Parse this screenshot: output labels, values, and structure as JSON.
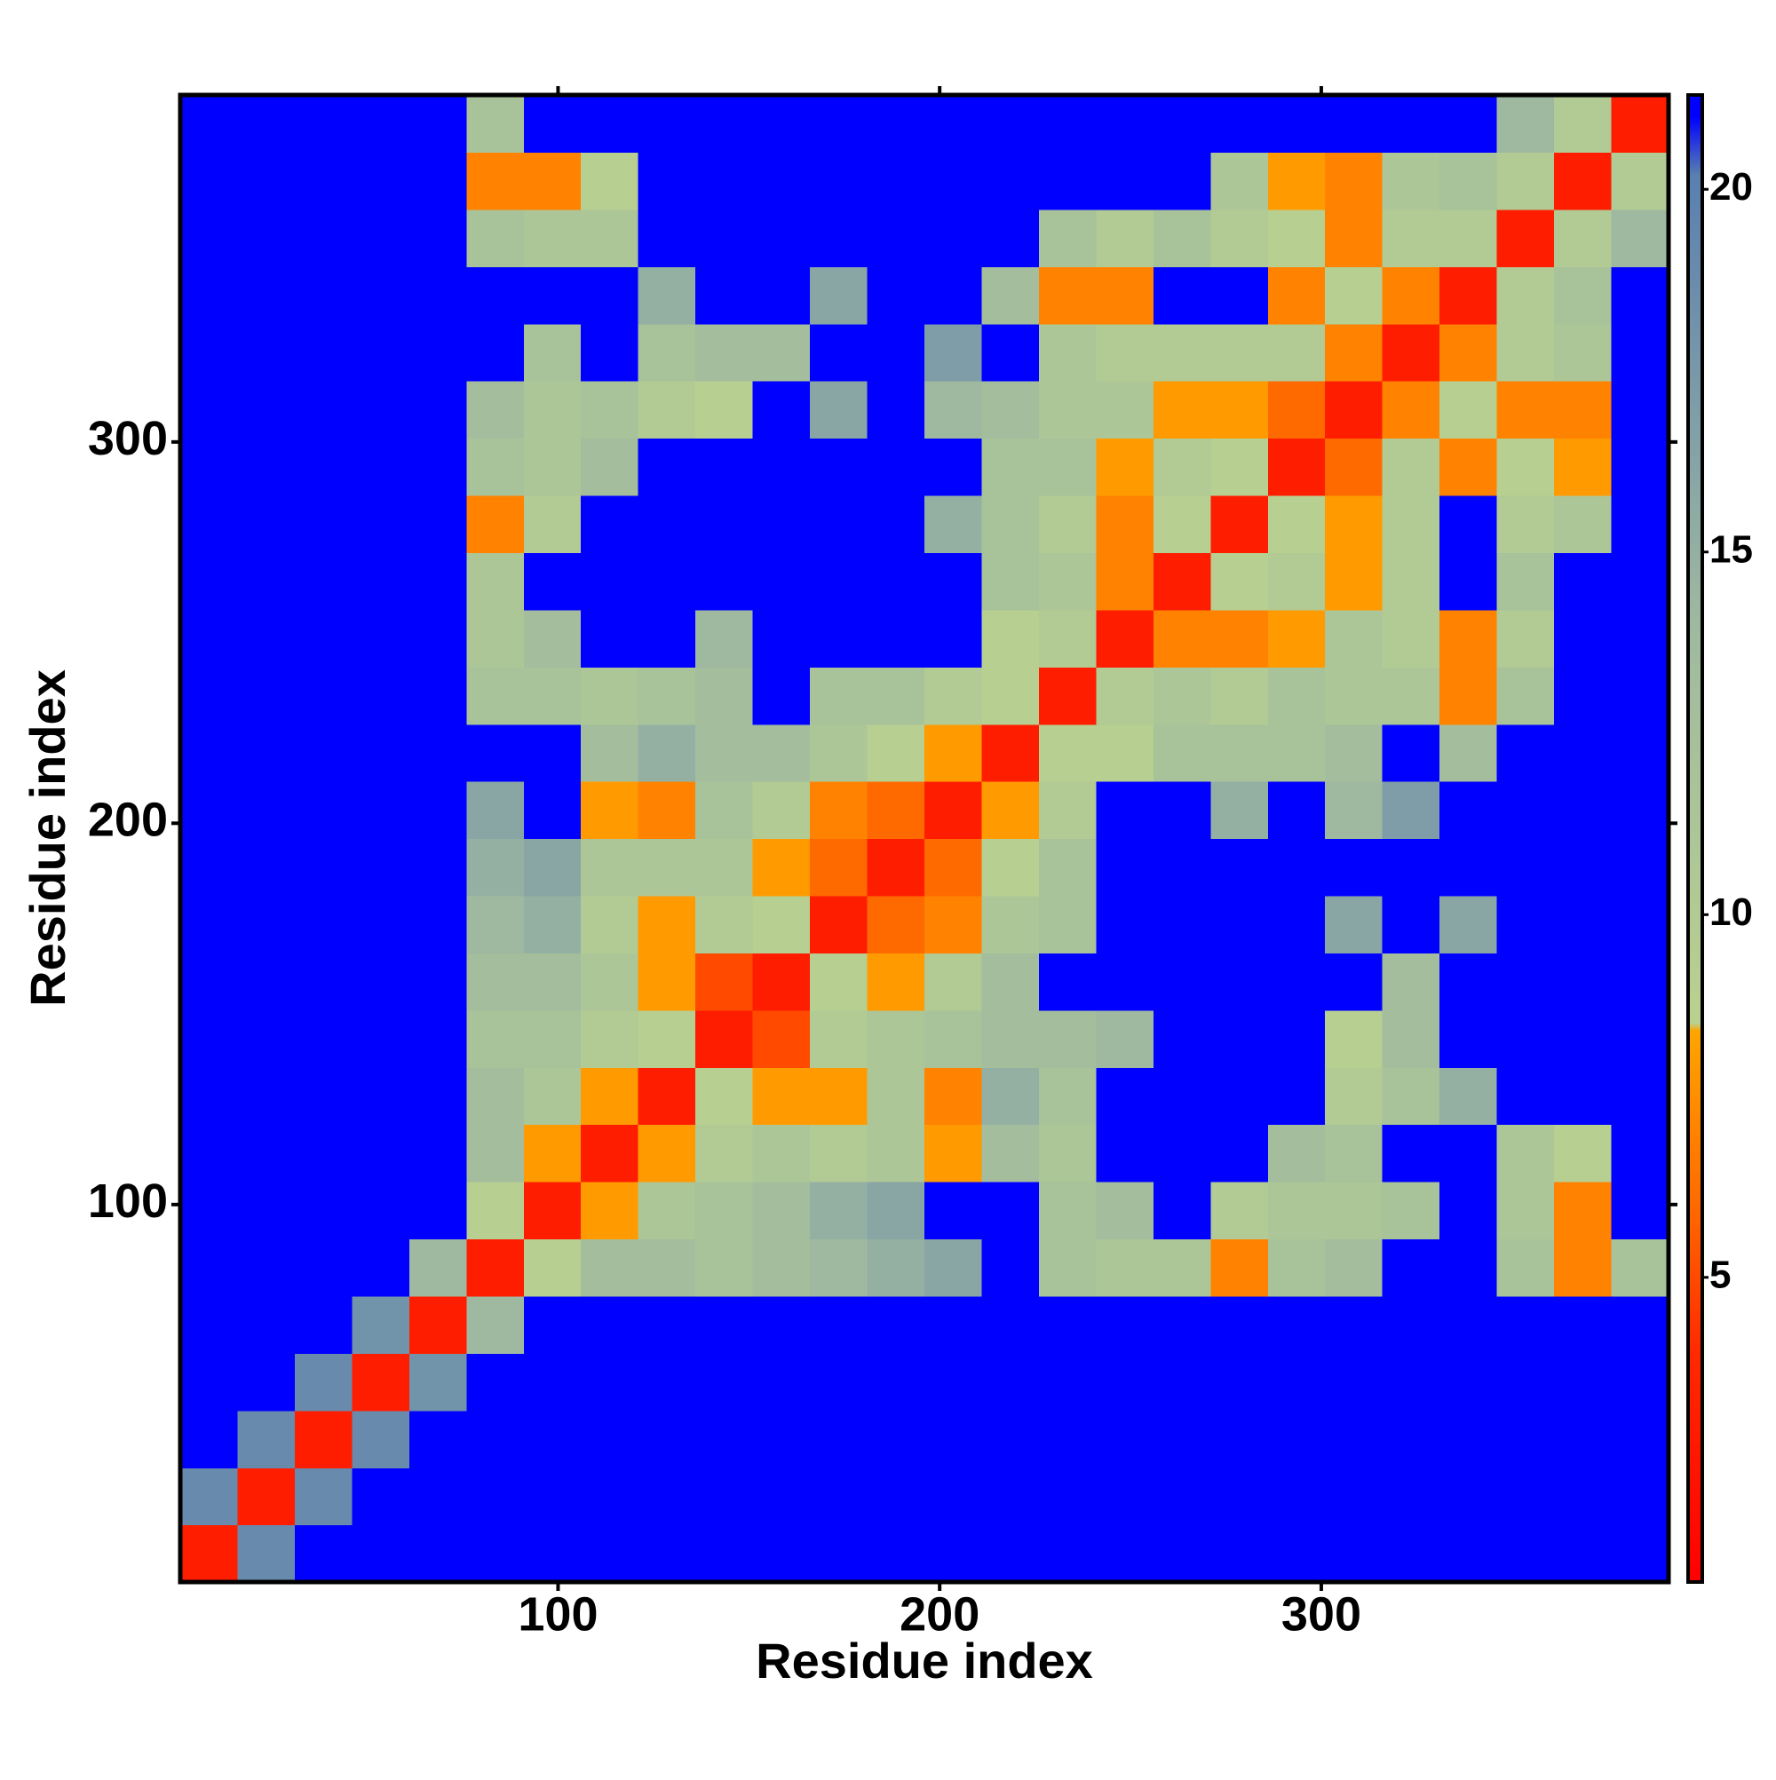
{
  "chart_data": {
    "type": "heatmap",
    "xlabel": "Residue index",
    "ylabel": "Residue index",
    "xlim": [
      1,
      391
    ],
    "ylim": [
      1,
      391
    ],
    "xticks": [
      100,
      200,
      300
    ],
    "yticks": [
      100,
      200,
      300
    ],
    "xbins": [
      1,
      16,
      31,
      46,
      61,
      76,
      91,
      106,
      121,
      136,
      151,
      166,
      181,
      196,
      211,
      226,
      241,
      256,
      271,
      286,
      301,
      316,
      331,
      346,
      361,
      376,
      391
    ],
    "ybins": [
      1,
      16,
      31,
      46,
      61,
      76,
      91,
      106,
      121,
      136,
      151,
      166,
      181,
      196,
      211,
      226,
      241,
      256,
      271,
      286,
      301,
      316,
      331,
      346,
      361,
      376,
      391
    ],
    "z": [
      [
        3,
        19,
        21,
        21,
        21,
        21,
        21,
        21,
        21,
        21,
        21,
        21,
        21,
        21,
        21,
        21,
        21,
        21,
        21,
        21,
        21,
        21,
        21,
        21,
        21,
        21
      ],
      [
        19,
        3,
        19,
        21,
        21,
        21,
        21,
        21,
        21,
        21,
        21,
        21,
        21,
        21,
        21,
        21,
        21,
        21,
        21,
        21,
        21,
        21,
        21,
        21,
        21,
        21
      ],
      [
        21,
        19,
        3,
        19,
        21,
        21,
        21,
        21,
        21,
        21,
        21,
        21,
        21,
        21,
        21,
        21,
        21,
        21,
        21,
        21,
        21,
        21,
        21,
        21,
        21,
        21
      ],
      [
        21,
        21,
        19,
        3,
        18,
        21,
        21,
        21,
        21,
        21,
        21,
        21,
        21,
        21,
        21,
        21,
        21,
        21,
        21,
        21,
        21,
        21,
        21,
        21,
        21,
        21
      ],
      [
        21,
        21,
        21,
        18,
        3,
        14,
        21,
        21,
        21,
        21,
        21,
        21,
        21,
        21,
        21,
        21,
        21,
        21,
        21,
        21,
        21,
        21,
        21,
        21,
        21,
        21
      ],
      [
        21,
        21,
        21,
        21,
        14,
        3,
        9,
        13,
        13,
        12,
        13,
        14,
        15,
        16,
        21,
        12,
        11,
        11,
        7,
        12,
        13,
        21,
        21,
        12,
        7,
        12
      ],
      [
        21,
        21,
        21,
        21,
        21,
        9,
        3,
        8,
        11,
        12,
        13,
        15,
        16,
        21,
        21,
        12,
        13,
        21,
        10,
        11,
        11,
        12,
        21,
        11,
        7,
        21
      ],
      [
        21,
        21,
        21,
        21,
        21,
        13,
        8,
        3,
        8,
        10,
        11,
        10,
        11,
        8,
        13,
        11,
        21,
        21,
        21,
        13,
        12,
        21,
        21,
        11,
        9,
        21
      ],
      [
        21,
        21,
        21,
        21,
        21,
        13,
        11,
        8,
        3,
        9,
        8,
        8,
        11,
        7,
        15,
        12,
        21,
        21,
        21,
        21,
        10,
        12,
        15,
        21,
        21,
        21
      ],
      [
        21,
        21,
        21,
        21,
        21,
        12,
        12,
        10,
        9,
        3,
        5,
        10,
        11,
        12,
        13,
        13,
        14,
        21,
        21,
        21,
        9,
        13,
        21,
        21,
        21,
        21
      ],
      [
        21,
        21,
        21,
        21,
        21,
        13,
        13,
        11,
        8,
        5,
        3,
        9,
        8,
        10,
        13,
        21,
        21,
        21,
        21,
        21,
        21,
        13,
        21,
        21,
        21,
        21
      ],
      [
        21,
        21,
        21,
        21,
        21,
        14,
        15,
        10,
        8,
        10,
        9,
        3,
        6,
        7,
        11,
        12,
        21,
        21,
        21,
        21,
        16,
        21,
        16,
        21,
        21,
        21
      ],
      [
        21,
        21,
        21,
        21,
        21,
        15,
        16,
        11,
        11,
        11,
        8,
        6,
        3,
        6,
        9,
        12,
        21,
        21,
        21,
        21,
        21,
        21,
        21,
        21,
        21,
        21
      ],
      [
        21,
        21,
        21,
        21,
        21,
        16,
        21,
        8,
        7,
        12,
        10,
        7,
        6,
        3,
        8,
        10,
        21,
        21,
        15,
        21,
        14,
        17,
        21,
        21,
        21,
        21
      ],
      [
        21,
        21,
        21,
        21,
        21,
        21,
        21,
        13,
        15,
        13,
        13,
        11,
        9,
        8,
        3,
        9,
        9,
        12,
        12,
        12,
        13,
        21,
        13,
        21,
        21,
        21
      ],
      [
        21,
        21,
        21,
        21,
        21,
        12,
        12,
        11,
        12,
        13,
        21,
        12,
        12,
        10,
        9,
        3,
        10,
        11,
        10,
        12,
        11,
        11,
        7,
        12,
        21,
        21
      ],
      [
        21,
        21,
        21,
        21,
        21,
        11,
        13,
        21,
        21,
        14,
        21,
        21,
        21,
        21,
        9,
        10,
        3,
        7,
        7,
        8,
        11,
        10,
        7,
        10,
        21,
        21
      ],
      [
        21,
        21,
        21,
        21,
        21,
        11,
        21,
        21,
        21,
        21,
        21,
        21,
        21,
        21,
        12,
        11,
        7,
        3,
        9,
        10,
        8,
        10,
        21,
        12,
        21,
        21
      ],
      [
        21,
        21,
        21,
        21,
        21,
        7,
        10,
        21,
        21,
        21,
        21,
        21,
        21,
        15,
        12,
        10,
        7,
        9,
        3,
        9,
        8,
        10,
        21,
        10,
        11,
        21
      ],
      [
        21,
        21,
        21,
        21,
        21,
        12,
        11,
        13,
        21,
        21,
        21,
        21,
        21,
        21,
        12,
        12,
        8,
        10,
        9,
        3,
        6,
        10,
        7,
        9,
        8,
        21
      ],
      [
        21,
        21,
        21,
        21,
        21,
        13,
        11,
        12,
        10,
        9,
        21,
        16,
        21,
        14,
        13,
        11,
        11,
        8,
        8,
        6,
        3,
        7,
        9,
        7,
        7,
        21
      ],
      [
        21,
        21,
        21,
        21,
        21,
        21,
        12,
        21,
        12,
        13,
        13,
        21,
        21,
        17,
        21,
        11,
        10,
        10,
        10,
        10,
        7,
        3,
        7,
        10,
        11,
        21
      ],
      [
        21,
        21,
        21,
        21,
        21,
        21,
        21,
        21,
        15,
        21,
        21,
        16,
        21,
        21,
        13,
        7,
        7,
        21,
        21,
        7,
        9,
        7,
        3,
        10,
        12,
        21
      ],
      [
        21,
        21,
        21,
        21,
        21,
        12,
        11,
        11,
        21,
        21,
        21,
        21,
        21,
        21,
        21,
        12,
        10,
        12,
        10,
        9,
        7,
        10,
        10,
        3,
        10,
        14
      ],
      [
        21,
        21,
        21,
        21,
        21,
        7,
        7,
        9,
        21,
        21,
        21,
        21,
        21,
        21,
        21,
        21,
        21,
        21,
        11,
        8,
        7,
        11,
        12,
        10,
        3,
        10
      ],
      [
        21,
        21,
        21,
        21,
        21,
        12,
        21,
        21,
        21,
        21,
        21,
        21,
        21,
        21,
        21,
        21,
        21,
        21,
        21,
        21,
        21,
        21,
        21,
        14,
        10,
        3
      ]
    ],
    "zlim": [
      0.8,
      21.3
    ],
    "zticks": [
      5,
      10,
      15,
      20
    ],
    "colorscale": [
      {
        "value": 0.8,
        "color": "#ff0000"
      },
      {
        "value": 4,
        "color": "#ff2a00"
      },
      {
        "value": 6,
        "color": "#ff6a00"
      },
      {
        "value": 8.4,
        "color": "#ffa500"
      },
      {
        "value": 8.5,
        "color": "#b9d18f"
      },
      {
        "value": 14,
        "color": "#9fb9a0"
      },
      {
        "value": 20.2,
        "color": "#5a7fb0"
      },
      {
        "value": 21,
        "color": "#0000ff"
      },
      {
        "value": 21.3,
        "color": "#0000ff"
      }
    ]
  }
}
